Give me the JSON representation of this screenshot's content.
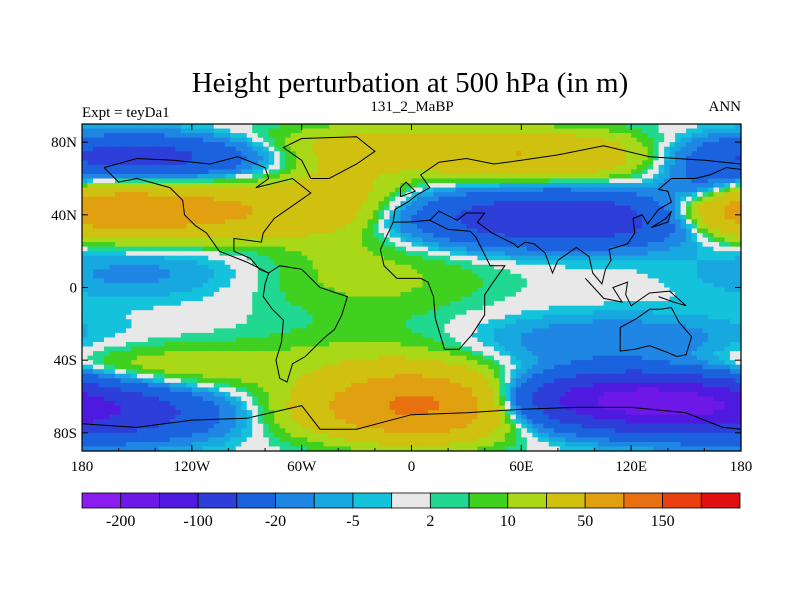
{
  "chart_data": {
    "type": "heatmap",
    "title": "Height perturbation at 500 hPa (in m)",
    "left_string": "Expt = teyDa1",
    "center_string": "131_2_MaBP",
    "right_string": "ANN",
    "x_ticks": [
      {
        "lon": -180,
        "label": "180"
      },
      {
        "lon": -120,
        "label": "120W"
      },
      {
        "lon": -60,
        "label": "60W"
      },
      {
        "lon": 0,
        "label": "0"
      },
      {
        "lon": 60,
        "label": "60E"
      },
      {
        "lon": 120,
        "label": "120E"
      },
      {
        "lon": 180,
        "label": "180"
      }
    ],
    "y_ticks": [
      {
        "lat": 80,
        "label": "80N"
      },
      {
        "lat": 40,
        "label": "40N"
      },
      {
        "lat": 0,
        "label": "0"
      },
      {
        "lat": -40,
        "label": "40S"
      },
      {
        "lat": -80,
        "label": "80S"
      }
    ],
    "xlim": [
      -180,
      180
    ],
    "ylim": [
      -90,
      90
    ],
    "levels": [
      -200,
      -150,
      -100,
      -50,
      -20,
      -10,
      -5,
      -2,
      2,
      5,
      10,
      20,
      50,
      100,
      150,
      200
    ],
    "colorbar_labels": [
      {
        "level": -200,
        "label": "-200"
      },
      {
        "level": -100,
        "label": "-100"
      },
      {
        "level": -20,
        "label": "-20"
      },
      {
        "level": -5,
        "label": "-5"
      },
      {
        "level": 2,
        "label": "2"
      },
      {
        "level": 10,
        "label": "10"
      },
      {
        "level": 50,
        "label": "50"
      },
      {
        "level": 150,
        "label": "150"
      }
    ],
    "colors": [
      "#8a1cf0",
      "#6e18e8",
      "#4f1ae0",
      "#2d3fd8",
      "#1a62de",
      "#1f86e4",
      "#18a8e0",
      "#14c2dc",
      "#e8e8e8",
      "#20d890",
      "#40d020",
      "#a8d818",
      "#d0c010",
      "#e0a010",
      "#e87010",
      "#e84010",
      "#e01010"
    ],
    "field": {
      "description": "Annual mean 500 hPa height perturbation; banded pattern in latitude",
      "features": [
        {
          "lon": -150,
          "lat": 72,
          "value": -60
        },
        {
          "lon": -145,
          "lat": 42,
          "value": 70
        },
        {
          "lon": -150,
          "lat": 8,
          "value": -8
        },
        {
          "lon": -155,
          "lat": -45,
          "value": 15
        },
        {
          "lon": -160,
          "lat": -70,
          "value": -60
        },
        {
          "lon": -30,
          "lat": 75,
          "value": 20
        },
        {
          "lon": 80,
          "lat": 72,
          "value": 40
        },
        {
          "lon": 85,
          "lat": 40,
          "value": -90
        },
        {
          "lon": 10,
          "lat": -35,
          "value": 10
        },
        {
          "lon": 20,
          "lat": -63,
          "value": 100
        },
        {
          "lon": 125,
          "lat": -60,
          "value": -150
        },
        {
          "lon": 170,
          "lat": 42,
          "value": 30
        }
      ]
    }
  }
}
